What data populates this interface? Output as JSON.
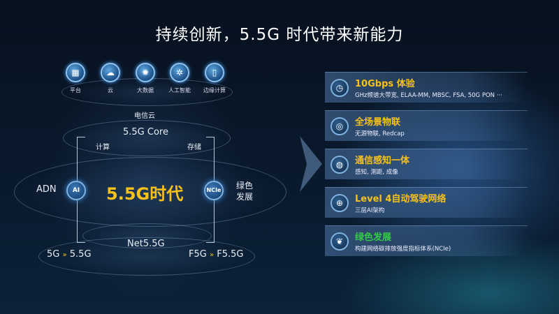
{
  "title": "持续创新，5.5G 时代带来新能力",
  "services": [
    {
      "label": "平台",
      "icon": "platform-icon",
      "glyph": "▦"
    },
    {
      "label": "云",
      "icon": "cloud-icon",
      "glyph": "☁"
    },
    {
      "label": "大数据",
      "icon": "big-data-icon",
      "glyph": "✺"
    },
    {
      "label": "人工智能",
      "icon": "ai-chip-icon",
      "glyph": "✲"
    },
    {
      "label": "边缘计算",
      "icon": "edge-computing-icon",
      "glyph": "▯"
    }
  ],
  "diagram": {
    "telecom_cloud": "电信云",
    "core": "5.5G Core",
    "compute": "计算",
    "storage": "存储",
    "adn": "ADN",
    "ai": "AI",
    "center": "5.5G时代",
    "ncie": "NCIe",
    "green_1": "绿色",
    "green_2": "发展",
    "net": "Net5.5G",
    "left_from": "5G",
    "left_to": "5.5G",
    "right_from": "F5G",
    "right_to": "F5.5G",
    "arrow": "»"
  },
  "features": [
    {
      "title": "10Gbps 体验",
      "desc": "GHz频谱大带宽, ELAA-MM, MBSC, FSA, 50G PON ···",
      "icon": "speed-icon",
      "glyph": "◷",
      "color": "#f6c21a"
    },
    {
      "title": "全场景物联",
      "desc": "无源物联, Redcap",
      "icon": "iot-icon",
      "glyph": "◎",
      "color": "#f6c21a"
    },
    {
      "title": "通信感知一体",
      "desc": "感知, 测距, 成像",
      "icon": "sensing-icon",
      "glyph": "◍",
      "color": "#f6c21a"
    },
    {
      "title": "Level 4自动驾驶网络",
      "desc": "三层AI架构",
      "icon": "network-globe-icon",
      "glyph": "⊕",
      "color": "#f6c21a"
    },
    {
      "title": "绿色发展",
      "desc": "构建网络碳排放强度指标体系(NCIe)",
      "icon": "leaf-icon",
      "glyph": "❦",
      "color": "#33cc44"
    }
  ]
}
